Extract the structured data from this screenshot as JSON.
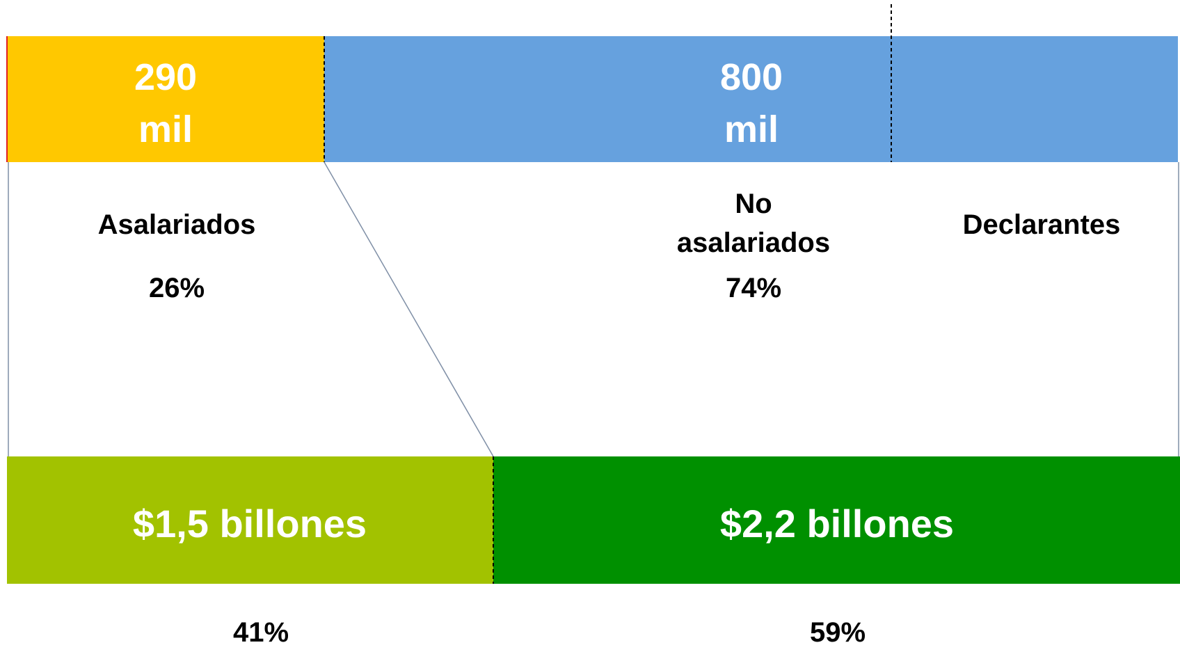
{
  "colors": {
    "asalariados_top": "#FFC800",
    "no_asalariados_top": "#66A1DE",
    "asalariados_bottom": "#A2C200",
    "no_asalariados_bottom": "#009000",
    "connector": "#7F8FA6",
    "accent_edge": "#E02020"
  },
  "top_row": {
    "asalariados": {
      "value_line1": "290",
      "value_line2": "mil",
      "label": "Asalariados",
      "percent": "26%",
      "share": 0.26
    },
    "no_asalariados": {
      "value_line1": "800",
      "value_line2": "mil",
      "label_line1": "No",
      "label_line2": "asalariados",
      "percent": "74%",
      "share": 0.74
    },
    "declarantes_label": "Declarantes"
  },
  "bottom_row": {
    "asalariados": {
      "value": "$1,5 billones",
      "percent": "41%",
      "share": 0.41
    },
    "no_asalariados": {
      "value": "$2,2 billones",
      "percent": "59%",
      "share": 0.59
    }
  }
}
